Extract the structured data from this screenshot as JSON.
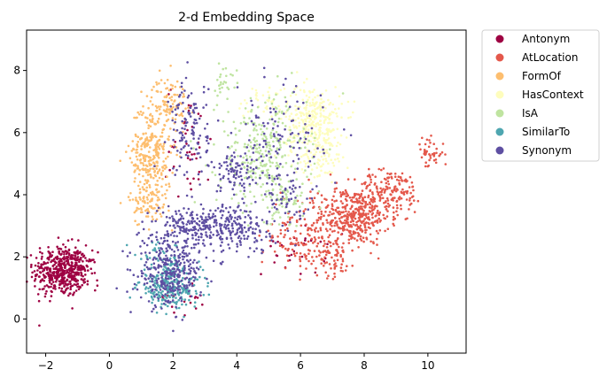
{
  "chart_data": {
    "type": "scatter",
    "title": "2-d Embedding Space",
    "xlabel": "",
    "ylabel": "",
    "xlim": [
      -2.6,
      11.2
    ],
    "ylim": [
      -1.1,
      9.3
    ],
    "xticks": [
      -2,
      0,
      2,
      4,
      6,
      8,
      10
    ],
    "yticks": [
      0,
      2,
      4,
      6,
      8
    ],
    "grid": false,
    "legend_position": "outside-right",
    "series": [
      {
        "name": "Antonym",
        "color": "#9e0142",
        "clusters": [
          {
            "cx": -1.55,
            "cy": 1.55,
            "sx": 0.42,
            "sy": 0.42,
            "n": 420
          },
          {
            "cx": -0.9,
            "cy": 1.55,
            "sx": 0.25,
            "sy": 0.3,
            "n": 80
          },
          {
            "cx": 2.5,
            "cy": 5.6,
            "sx": 0.35,
            "sy": 1.0,
            "n": 40
          },
          {
            "cx": 5.8,
            "cy": 2.2,
            "sx": 0.5,
            "sy": 0.4,
            "n": 30
          },
          {
            "cx": 2.3,
            "cy": 0.7,
            "sx": 0.4,
            "sy": 0.3,
            "n": 20
          }
        ]
      },
      {
        "name": "AtLocation",
        "color": "#e4584b",
        "clusters": [
          {
            "cx": 7.7,
            "cy": 3.3,
            "sx": 0.55,
            "sy": 0.45,
            "n": 380
          },
          {
            "cx": 8.8,
            "cy": 4.1,
            "sx": 0.55,
            "sy": 0.35,
            "n": 160
          },
          {
            "cx": 6.9,
            "cy": 2.1,
            "sx": 0.45,
            "sy": 0.35,
            "n": 90
          },
          {
            "cx": 6.4,
            "cy": 3.1,
            "sx": 0.5,
            "sy": 0.6,
            "n": 90
          },
          {
            "cx": 10.05,
            "cy": 5.3,
            "sx": 0.22,
            "sy": 0.25,
            "n": 45
          },
          {
            "cx": 5.6,
            "cy": 2.5,
            "sx": 0.4,
            "sy": 0.3,
            "n": 40
          }
        ]
      },
      {
        "name": "FormOf",
        "color": "#fdbe6f",
        "clusters": [
          {
            "cx": 1.3,
            "cy": 5.3,
            "sx": 0.32,
            "sy": 0.85,
            "n": 320
          },
          {
            "cx": 1.9,
            "cy": 7.0,
            "sx": 0.28,
            "sy": 0.4,
            "n": 90
          },
          {
            "cx": 1.2,
            "cy": 3.7,
            "sx": 0.3,
            "sy": 0.35,
            "n": 60
          }
        ]
      },
      {
        "name": "HasContext",
        "color": "#fefdbd",
        "clusters": [
          {
            "cx": 6.4,
            "cy": 6.3,
            "sx": 0.45,
            "sy": 0.6,
            "n": 320
          },
          {
            "cx": 6.7,
            "cy": 5.2,
            "sx": 0.3,
            "sy": 0.4,
            "n": 60
          },
          {
            "cx": 4.9,
            "cy": 7.0,
            "sx": 0.45,
            "sy": 0.3,
            "n": 40
          }
        ]
      },
      {
        "name": "IsA",
        "color": "#bfe4a0",
        "clusters": [
          {
            "cx": 4.8,
            "cy": 5.3,
            "sx": 0.7,
            "sy": 0.9,
            "n": 300
          },
          {
            "cx": 3.6,
            "cy": 7.7,
            "sx": 0.2,
            "sy": 0.25,
            "n": 25
          },
          {
            "cx": 5.5,
            "cy": 3.8,
            "sx": 0.5,
            "sy": 0.4,
            "n": 60
          }
        ]
      },
      {
        "name": "SimilarTo",
        "color": "#4ea6b0",
        "clusters": [
          {
            "cx": 1.9,
            "cy": 1.0,
            "sx": 0.5,
            "sy": 0.3,
            "n": 220
          },
          {
            "cx": 1.6,
            "cy": 1.8,
            "sx": 0.35,
            "sy": 0.35,
            "n": 60
          }
        ]
      },
      {
        "name": "Synonym",
        "color": "#5e4fa2",
        "clusters": [
          {
            "cx": 1.9,
            "cy": 1.5,
            "sx": 0.5,
            "sy": 0.55,
            "n": 320
          },
          {
            "cx": 2.8,
            "cy": 3.0,
            "sx": 0.7,
            "sy": 0.35,
            "n": 240
          },
          {
            "cx": 4.2,
            "cy": 2.9,
            "sx": 0.5,
            "sy": 0.4,
            "n": 120
          },
          {
            "cx": 2.5,
            "cy": 6.1,
            "sx": 0.3,
            "sy": 0.8,
            "n": 120
          },
          {
            "cx": 3.9,
            "cy": 4.7,
            "sx": 0.4,
            "sy": 0.3,
            "n": 80
          },
          {
            "cx": 5.3,
            "cy": 5.6,
            "sx": 0.7,
            "sy": 0.9,
            "n": 120
          },
          {
            "cx": 5.6,
            "cy": 3.8,
            "sx": 0.4,
            "sy": 0.5,
            "n": 50
          }
        ]
      }
    ]
  }
}
